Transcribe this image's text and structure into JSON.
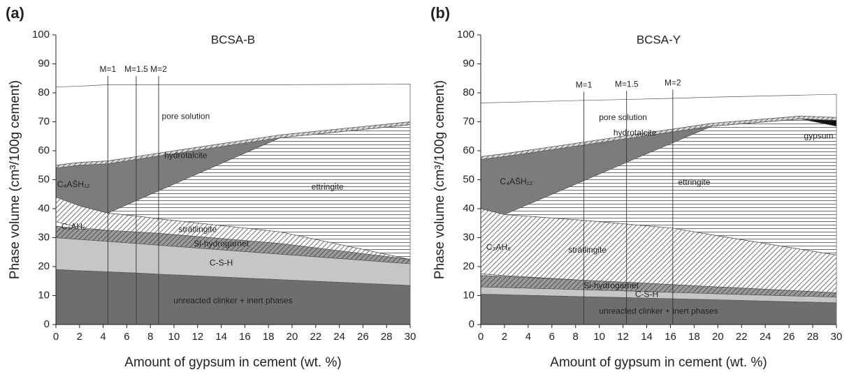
{
  "chart_data": [
    {
      "type": "area",
      "stacked": true,
      "panel": "(a)",
      "title": "BCSA-B",
      "x_label": "Amount of gypsum in cement (wt. %)",
      "y_label": "Phase volume (cm³/100g cement)",
      "xlim": [
        0,
        30
      ],
      "ylim": [
        0,
        100
      ],
      "xticks": [
        0,
        2,
        4,
        6,
        8,
        10,
        12,
        14,
        16,
        18,
        20,
        22,
        24,
        26,
        28,
        30
      ],
      "yticks": [
        0,
        10,
        20,
        30,
        40,
        50,
        60,
        70,
        80,
        90,
        100
      ],
      "markers": [
        {
          "label": "M=1",
          "x": 4.4
        },
        {
          "label": "M=1.5",
          "x": 6.8
        },
        {
          "label": "M=2",
          "x": 8.7
        }
      ],
      "x": [
        0,
        2,
        4.4,
        6.8,
        8.7,
        19,
        30
      ],
      "series": [
        {
          "name": "unreacted clinker + inert phases",
          "color": "#6e6e6e",
          "values": [
            19,
            18.6,
            18.2,
            17.8,
            17.4,
            15.5,
            13.5
          ]
        },
        {
          "name": "C-S-H",
          "color": "#c6c6c6",
          "values": [
            11,
            10.8,
            10.5,
            10.2,
            10,
            8.8,
            7.5
          ]
        },
        {
          "name": "Si-hydrogarnet",
          "color": "#9a9a9a",
          "hatch": "diagonal",
          "values": [
            4,
            3.6,
            3.8,
            4,
            4.1,
            3.7,
            1.5
          ]
        },
        {
          "name": "C₃AH₆",
          "color": "#ffffff",
          "values": [
            1.5,
            0.5,
            0,
            0,
            0,
            0,
            0
          ]
        },
        {
          "name": "strätlingite",
          "color": "#ffffff",
          "hatch": "diagonal",
          "values": [
            8.5,
            7.5,
            6,
            5.5,
            5,
            4,
            0
          ]
        },
        {
          "name": "ettringite",
          "color": "#ffffff",
          "hatch": "horizontal",
          "values": [
            0,
            0,
            0,
            5.3,
            9.7,
            32.5,
            46.5
          ]
        },
        {
          "name": "C₄AS̄H₁₂",
          "color": "#7c7c7c",
          "values": [
            10,
            14,
            17,
            14.2,
            12,
            0,
            0
          ]
        },
        {
          "name": "hydrotalcite",
          "color": "#d8d8d8",
          "hatch": "diagonal",
          "values": [
            1,
            1,
            1,
            1,
            1,
            1,
            1
          ]
        },
        {
          "name": "pore solution",
          "color": "#ffffff",
          "values": [
            27,
            26.3,
            26.3,
            24.8,
            23.6,
            17.3,
            13
          ]
        }
      ]
    },
    {
      "type": "area",
      "stacked": true,
      "panel": "(b)",
      "title": "BCSA-Y",
      "x_label": "Amount of gypsum in cement (wt. %)",
      "y_label": "Phase volume (cm³/100g cement)",
      "xlim": [
        0,
        30
      ],
      "ylim": [
        0,
        100
      ],
      "xticks": [
        0,
        2,
        4,
        6,
        8,
        10,
        12,
        14,
        16,
        18,
        20,
        22,
        24,
        26,
        28,
        30
      ],
      "yticks": [
        0,
        10,
        20,
        30,
        40,
        50,
        60,
        70,
        80,
        90,
        100
      ],
      "markers": [
        {
          "label": "M=1",
          "x": 8.7
        },
        {
          "label": "M=1.5",
          "x": 12.3
        },
        {
          "label": "M=2",
          "x": 16.2
        }
      ],
      "x": [
        0,
        2,
        8.7,
        12.3,
        16.2,
        19.5,
        27,
        30
      ],
      "series": [
        {
          "name": "unreacted clinker + inert phases",
          "color": "#6e6e6e",
          "values": [
            10.5,
            10.3,
            9.6,
            9.3,
            8.9,
            8.6,
            7.8,
            7.5
          ]
        },
        {
          "name": "C-S-H",
          "color": "#c6c6c6",
          "values": [
            2.5,
            2.5,
            2.4,
            2.3,
            2.2,
            2.1,
            2,
            2
          ]
        },
        {
          "name": "Si-hydrogarnet",
          "color": "#9a9a9a",
          "hatch": "diagonal",
          "values": [
            4,
            3.8,
            3.3,
            3,
            2.7,
            2.4,
            1.8,
            1.5
          ]
        },
        {
          "name": "C₃AH₆",
          "color": "#ffffff",
          "values": [
            0.5,
            0.3,
            0,
            0,
            0,
            0,
            0,
            0
          ]
        },
        {
          "name": "strätlingite",
          "color": "#ffffff",
          "hatch": "diagonal",
          "values": [
            22.5,
            21.1,
            20.7,
            20.1,
            19.5,
            17.9,
            14.4,
            13
          ]
        },
        {
          "name": "ettringite",
          "color": "#ffffff",
          "hatch": "horizontal",
          "values": [
            0,
            0,
            13.7,
            21.3,
            29.5,
            37.5,
            45,
            44.5
          ]
        },
        {
          "name": "C₄AS̄H₁₂",
          "color": "#7c7c7c",
          "values": [
            17,
            20,
            12.3,
            8.2,
            3.7,
            0,
            0,
            0
          ]
        },
        {
          "name": "gypsum",
          "color": "#111111",
          "values": [
            0,
            0,
            0,
            0,
            0,
            0,
            0,
            2
          ]
        },
        {
          "name": "hydrotalcite",
          "color": "#d8d8d8",
          "hatch": "diagonal",
          "values": [
            1,
            1,
            1,
            1,
            1,
            1,
            1,
            1
          ]
        },
        {
          "name": "pore solution",
          "color": "#ffffff",
          "values": [
            18.5,
            17.7,
            14.4,
            12.5,
            10.6,
            9,
            7.2,
            8
          ]
        }
      ]
    }
  ]
}
